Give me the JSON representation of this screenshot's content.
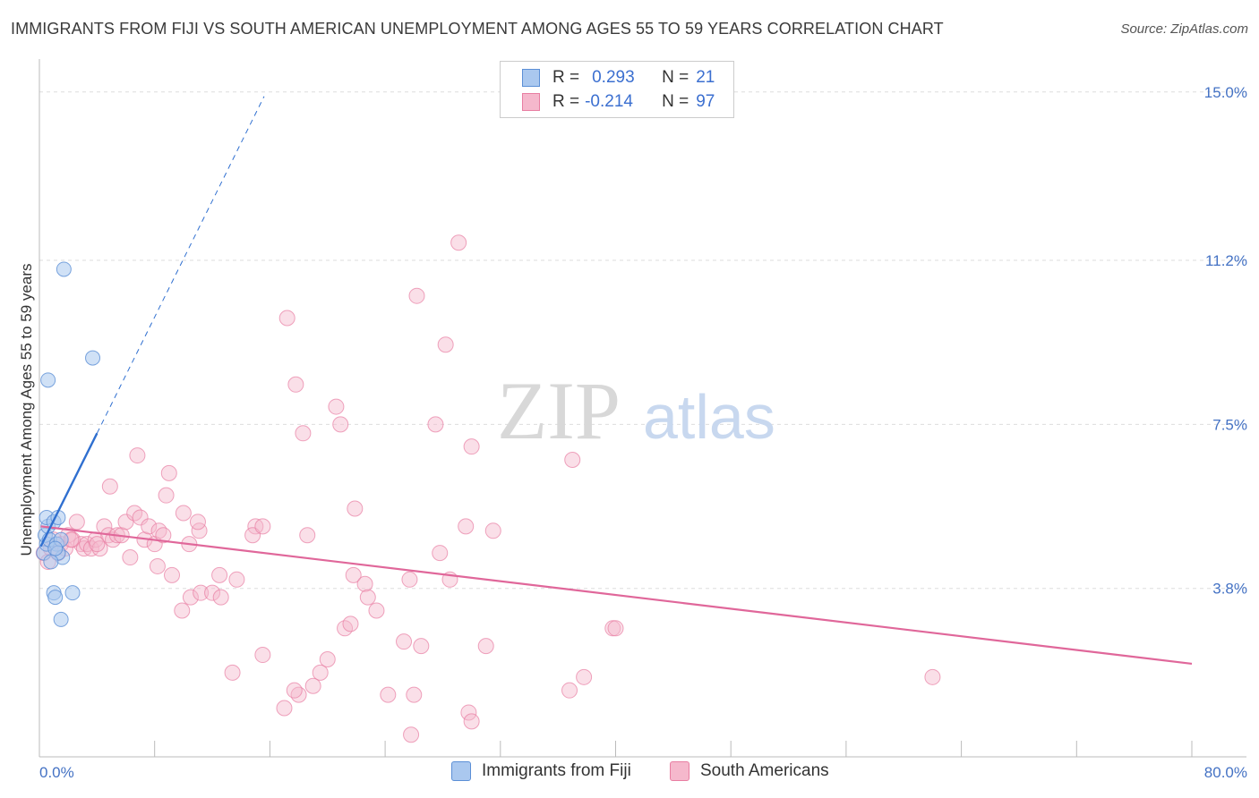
{
  "title": "IMMIGRANTS FROM FIJI VS SOUTH AMERICAN UNEMPLOYMENT AMONG AGES 55 TO 59 YEARS CORRELATION CHART",
  "source": "Source: ZipAtlas.com",
  "watermark": {
    "zip": "ZIP",
    "atlas": "atlas"
  },
  "legend": {
    "rows": [
      {
        "r_key": "R =",
        "r_value": "0.293",
        "n_key": "N =",
        "n_value": "21"
      },
      {
        "r_key": "R =",
        "r_value": "-0.214",
        "n_key": "N =",
        "n_value": "97"
      }
    ]
  },
  "bottom_legend": {
    "fiji": "Immigrants from Fiji",
    "south": "South Americans"
  },
  "colors": {
    "fiji_fill": "#aac8ef",
    "fiji_stroke": "#5b8fd6",
    "fiji_line": "#2f6fd0",
    "south_fill": "#f5b8cc",
    "south_stroke": "#e87ea2",
    "south_line": "#e0679a",
    "tick_label": "#4472c4",
    "grid": "#dddddd"
  },
  "chart_data": {
    "type": "scatter",
    "title": "IMMIGRANTS FROM FIJI VS SOUTH AMERICAN UNEMPLOYMENT AMONG AGES 55 TO 59 YEARS CORRELATION CHART",
    "xlabel": "",
    "ylabel": "Unemployment Among Ages 55 to 59 years",
    "xlim": [
      0,
      80
    ],
    "ylim": [
      0,
      15.5
    ],
    "x_tick_labels": [
      "0.0%",
      "80.0%"
    ],
    "y_ticks": [
      3.8,
      7.5,
      11.2,
      15.0
    ],
    "y_tick_labels": [
      "3.8%",
      "7.5%",
      "11.2%",
      "15.0%"
    ],
    "x_minor_ticks": [
      0,
      8,
      16,
      24,
      32,
      40,
      48,
      56,
      64,
      72,
      80
    ],
    "series": [
      {
        "name": "Immigrants from Fiji",
        "r": 0.293,
        "n": 21,
        "trend": {
          "x0": 0.1,
          "y0": 4.75,
          "x1": 4.0,
          "y1": 7.3,
          "x_dash_end": 15.6,
          "y_dash_end": 14.9
        },
        "points": [
          [
            0.3,
            4.6
          ],
          [
            0.5,
            4.8
          ],
          [
            0.4,
            5.0
          ],
          [
            0.6,
            5.2
          ],
          [
            0.7,
            4.9
          ],
          [
            0.5,
            5.4
          ],
          [
            1.0,
            5.3
          ],
          [
            1.3,
            5.4
          ],
          [
            1.2,
            4.8
          ],
          [
            1.5,
            4.9
          ],
          [
            1.6,
            4.5
          ],
          [
            1.3,
            4.6
          ],
          [
            0.8,
            4.4
          ],
          [
            1.1,
            4.7
          ],
          [
            0.6,
            8.5
          ],
          [
            1.7,
            11.0
          ],
          [
            3.7,
            9.0
          ],
          [
            1.0,
            3.7
          ],
          [
            1.1,
            3.6
          ],
          [
            2.3,
            3.7
          ],
          [
            1.5,
            3.1
          ]
        ]
      },
      {
        "name": "South Americans",
        "r": -0.214,
        "n": 97,
        "trend": {
          "x0": 0.1,
          "y0": 5.2,
          "x1": 80.0,
          "y1": 2.1
        },
        "points": [
          [
            0.3,
            4.6
          ],
          [
            0.6,
            4.4
          ],
          [
            0.8,
            4.7
          ],
          [
            1.0,
            4.9
          ],
          [
            1.3,
            4.6
          ],
          [
            1.5,
            4.8
          ],
          [
            1.8,
            4.7
          ],
          [
            2.0,
            5.0
          ],
          [
            2.3,
            4.9
          ],
          [
            2.6,
            5.3
          ],
          [
            2.9,
            4.8
          ],
          [
            3.1,
            4.7
          ],
          [
            3.3,
            4.8
          ],
          [
            3.6,
            4.7
          ],
          [
            3.9,
            4.9
          ],
          [
            4.2,
            4.7
          ],
          [
            4.5,
            5.2
          ],
          [
            4.8,
            5.0
          ],
          [
            5.1,
            4.9
          ],
          [
            5.4,
            5.0
          ],
          [
            5.7,
            5.0
          ],
          [
            6.0,
            5.3
          ],
          [
            6.3,
            4.5
          ],
          [
            6.6,
            5.5
          ],
          [
            7.0,
            5.4
          ],
          [
            7.3,
            4.9
          ],
          [
            7.6,
            5.2
          ],
          [
            8.0,
            4.8
          ],
          [
            8.3,
            5.1
          ],
          [
            8.6,
            5.0
          ],
          [
            4.9,
            6.1
          ],
          [
            6.8,
            6.8
          ],
          [
            9.0,
            6.4
          ],
          [
            8.8,
            5.9
          ],
          [
            10.0,
            5.5
          ],
          [
            10.4,
            4.8
          ],
          [
            11.1,
            5.1
          ],
          [
            11.0,
            5.3
          ],
          [
            9.2,
            4.1
          ],
          [
            8.2,
            4.3
          ],
          [
            10.5,
            3.6
          ],
          [
            9.9,
            3.3
          ],
          [
            11.2,
            3.7
          ],
          [
            12.0,
            3.7
          ],
          [
            12.6,
            3.6
          ],
          [
            13.7,
            4.0
          ],
          [
            12.5,
            4.1
          ],
          [
            15.0,
            5.2
          ],
          [
            14.8,
            5.0
          ],
          [
            15.5,
            5.2
          ],
          [
            18.6,
            5.0
          ],
          [
            18.3,
            7.3
          ],
          [
            17.8,
            8.4
          ],
          [
            17.2,
            9.9
          ],
          [
            20.6,
            7.9
          ],
          [
            20.9,
            7.5
          ],
          [
            21.9,
            5.6
          ],
          [
            21.8,
            4.1
          ],
          [
            22.6,
            3.9
          ],
          [
            22.8,
            3.6
          ],
          [
            21.2,
            2.9
          ],
          [
            21.6,
            3.0
          ],
          [
            23.4,
            3.3
          ],
          [
            25.3,
            2.6
          ],
          [
            26.5,
            2.5
          ],
          [
            25.7,
            4.0
          ],
          [
            27.8,
            4.6
          ],
          [
            27.5,
            7.5
          ],
          [
            26.2,
            10.4
          ],
          [
            28.2,
            9.3
          ],
          [
            29.1,
            11.6
          ],
          [
            28.5,
            4.0
          ],
          [
            30.0,
            7.0
          ],
          [
            29.6,
            5.2
          ],
          [
            31.5,
            5.1
          ],
          [
            31.0,
            2.5
          ],
          [
            37.0,
            6.7
          ],
          [
            39.8,
            2.9
          ],
          [
            40.0,
            2.9
          ],
          [
            36.8,
            1.5
          ],
          [
            37.8,
            1.8
          ],
          [
            62.0,
            1.8
          ],
          [
            19.5,
            1.9
          ],
          [
            20.0,
            2.2
          ],
          [
            18.0,
            1.4
          ],
          [
            19.0,
            1.6
          ],
          [
            17.7,
            1.5
          ],
          [
            17.0,
            1.1
          ],
          [
            13.4,
            1.9
          ],
          [
            15.5,
            2.3
          ],
          [
            24.2,
            1.4
          ],
          [
            26.0,
            1.4
          ],
          [
            29.8,
            1.0
          ],
          [
            30.0,
            0.8
          ],
          [
            25.8,
            0.5
          ],
          [
            4.0,
            4.8
          ],
          [
            2.2,
            4.9
          ]
        ]
      }
    ]
  }
}
